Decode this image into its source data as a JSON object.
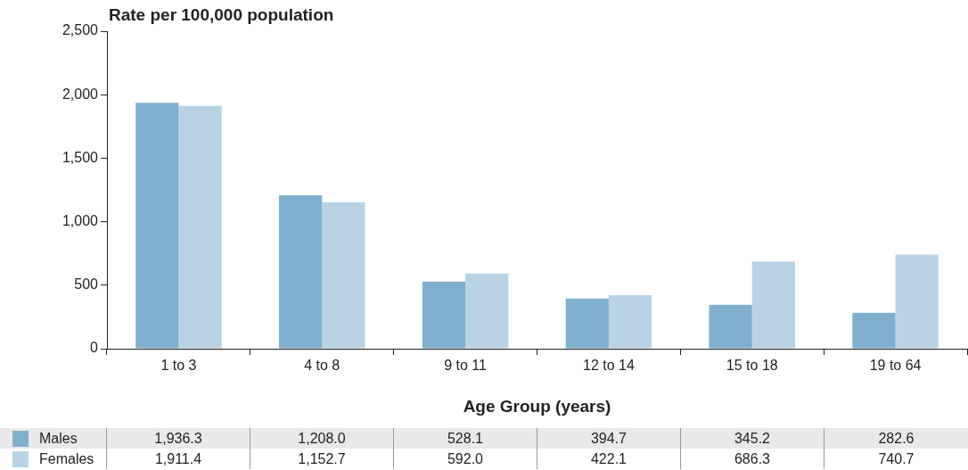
{
  "chart_data": {
    "type": "bar",
    "ylabel": "Rate per 100,000 population",
    "xlabel": "Age Group (years)",
    "categories": [
      "1 to 3",
      "4 to 8",
      "9 to 11",
      "12 to 14",
      "15 to 18",
      "19 to 64"
    ],
    "series": [
      {
        "name": "Males",
        "color": "#7fb0cd",
        "values": [
          1936.3,
          1208.0,
          528.1,
          394.7,
          345.2,
          282.6
        ],
        "value_labels": [
          "1,936.3",
          "1,208.0",
          "528.1",
          "394.7",
          "345.2",
          "282.6"
        ]
      },
      {
        "name": "Females",
        "color": "#b9d3e5",
        "values": [
          1911.4,
          1152.7,
          592.0,
          422.1,
          686.3,
          740.7
        ],
        "value_labels": [
          "1,911.4",
          "1,152.7",
          "592.0",
          "422.1",
          "686.3",
          "740.7"
        ]
      }
    ],
    "ylim": [
      0,
      2500
    ],
    "yticks": [
      0,
      500,
      {
        "value": 1000,
        "label": "1,000"
      },
      {
        "value": 1500,
        "label": "1,500"
      },
      {
        "value": 2000,
        "label": "2,000"
      },
      {
        "value": 2500,
        "label": "2,500"
      }
    ],
    "grid": false,
    "legend": "bottom"
  }
}
